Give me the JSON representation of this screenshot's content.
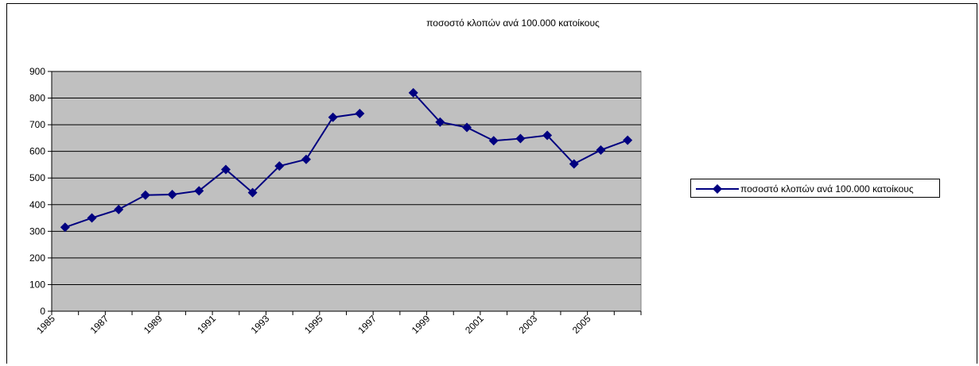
{
  "chart_data": {
    "type": "line",
    "title": "ποσοστό κλοπών ανά 100.000 κατοίκους",
    "xlabel": "",
    "ylabel": "",
    "ylim": [
      0,
      900
    ],
    "y_ticks": [
      "0",
      "100",
      "200",
      "300",
      "400",
      "500",
      "600",
      "700",
      "800",
      "900"
    ],
    "x_tick_labels": [
      "1985",
      "1987",
      "1989",
      "1991",
      "1993",
      "1995",
      "1997",
      "1999",
      "2001",
      "2003",
      "2005"
    ],
    "x": [
      1985,
      1986,
      1987,
      1988,
      1989,
      1990,
      1991,
      1992,
      1993,
      1994,
      1995,
      1996,
      1997,
      1998,
      1999,
      2000,
      2001,
      2002,
      2003,
      2004,
      2005,
      2006
    ],
    "series": [
      {
        "name": "ποσοστό κλοπών ανά 100.000 κατοίκους",
        "values": [
          315,
          350,
          382,
          436,
          438,
          452,
          532,
          445,
          545,
          570,
          728,
          742,
          null,
          820,
          710,
          690,
          640,
          648,
          660,
          553,
          605,
          642
        ],
        "color": "#000080",
        "marker": "diamond"
      }
    ],
    "grid": true,
    "plot_background": "#c0c0c0",
    "legend_position": "right"
  }
}
